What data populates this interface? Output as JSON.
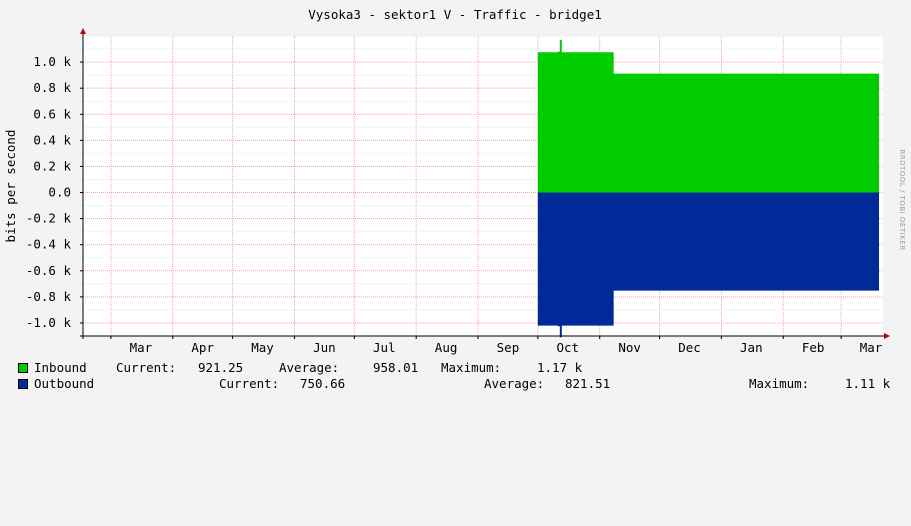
{
  "chart_data": {
    "type": "area",
    "title": "Vysoka3 - sektor1 V - Traffic - bridge1",
    "ylabel": "bits per second",
    "watermark": "RRDTOOL / TOBI OETIKER",
    "ylim": [
      -1100,
      1200
    ],
    "yticks": [
      -1000,
      -800,
      -600,
      -400,
      -200,
      0,
      200,
      400,
      600,
      800,
      1000
    ],
    "ytick_labels": [
      "-1.0 k",
      "-0.8 k",
      "-0.6 k",
      "-0.4 k",
      "-0.2 k",
      "0.0",
      "0.2 k",
      "0.4 k",
      "0.6 k",
      "0.8 k",
      "1.0 k"
    ],
    "x_start": "2023-02-15",
    "x_end": "2024-03-22",
    "xticks": [
      "Mar",
      "Apr",
      "May",
      "Jun",
      "Jul",
      "Aug",
      "Sep",
      "Oct",
      "Nov",
      "Dec",
      "Jan",
      "Feb",
      "Mar"
    ],
    "grid": true,
    "series": [
      {
        "name": "Inbound",
        "color": "#00cc00",
        "x": [
          "2023-10-01",
          "2023-10-11",
          "2023-10-12",
          "2023-10-13",
          "2023-11-07",
          "2023-11-08",
          "2024-03-20"
        ],
        "values": [
          1075,
          1080,
          1170,
          1075,
          1075,
          912,
          912
        ]
      },
      {
        "name": "Outbound",
        "color": "#002a97",
        "x": [
          "2023-10-01",
          "2023-10-11",
          "2023-10-12",
          "2023-10-13",
          "2023-11-07",
          "2023-11-08",
          "2024-03-20"
        ],
        "values": [
          -1020,
          -1025,
          -1110,
          -1020,
          -1020,
          -752,
          -752
        ]
      }
    ]
  },
  "legend": {
    "inbound": {
      "label": "Inbound",
      "current_label": "Current:",
      "current": "921.25",
      "average_label": "Average:",
      "average": "958.01",
      "maximum_label": "Maximum:",
      "maximum": "1.17 k"
    },
    "outbound": {
      "label": "Outbound",
      "current_label": "Current:",
      "current": "750.66",
      "average_label": "Average:",
      "average": "821.51",
      "maximum_label": "Maximum:",
      "maximum": "1.11 k"
    }
  }
}
